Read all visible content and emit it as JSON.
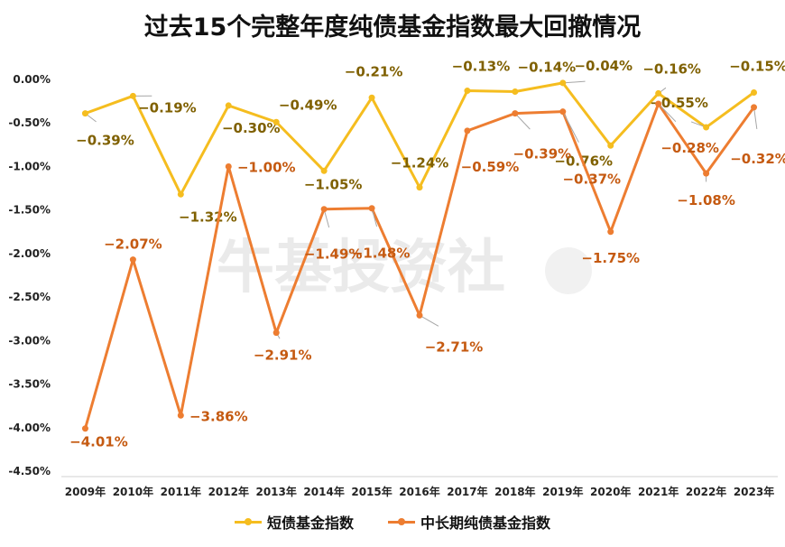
{
  "chart_data": {
    "type": "line",
    "title": "过去15个完整年度纯债基金指数最大回撤情况",
    "categories": [
      "2009年",
      "2010年",
      "2011年",
      "2012年",
      "2013年",
      "2014年",
      "2015年",
      "2016年",
      "2017年",
      "2018年",
      "2019年",
      "2020年",
      "2021年",
      "2022年",
      "2023年"
    ],
    "ylim": [
      -4.5,
      0
    ],
    "yticks": [
      "0.00%",
      "-0.50%",
      "-1.00%",
      "-1.50%",
      "-2.00%",
      "-2.50%",
      "-3.00%",
      "-3.50%",
      "-4.00%",
      "-4.50%"
    ],
    "legend_position": "bottom",
    "watermark": "牛基投资社",
    "series": [
      {
        "name": "短债基金指数",
        "color": "#f5bd1f",
        "label_color": "#7f6000",
        "values": [
          -0.39,
          -0.19,
          -1.32,
          -0.3,
          -0.49,
          -1.05,
          -0.21,
          -1.24,
          -0.13,
          -0.14,
          -0.04,
          -0.76,
          -0.16,
          -0.55,
          -0.15
        ],
        "labels": [
          "−0.39%",
          "−0.19%",
          "−1.32%",
          "−0.30%",
          "−0.49%",
          "−1.05%",
          "−0.21%",
          "−1.24%",
          "−0.13%",
          "−0.14%",
          "−0.04%",
          "−0.76%",
          "−0.16%",
          "−0.55%",
          "−0.15%"
        ]
      },
      {
        "name": "中长期纯债基金指数",
        "color": "#ed7d31",
        "label_color": "#c55a11",
        "values": [
          -4.01,
          -2.07,
          -3.86,
          -1.0,
          -2.91,
          -1.49,
          -1.48,
          -2.71,
          -0.59,
          -0.39,
          -0.37,
          -1.75,
          -0.28,
          -1.08,
          -0.32
        ],
        "labels": [
          "−4.01%",
          "−2.07%",
          "−3.86%",
          "−1.00%",
          "−2.91%",
          "−1.49%",
          "−1.48%",
          "−2.71%",
          "−0.59%",
          "−0.39%",
          "−0.37%",
          "−1.75%",
          "−0.28%",
          "−1.08%",
          "−0.32%"
        ]
      }
    ]
  }
}
